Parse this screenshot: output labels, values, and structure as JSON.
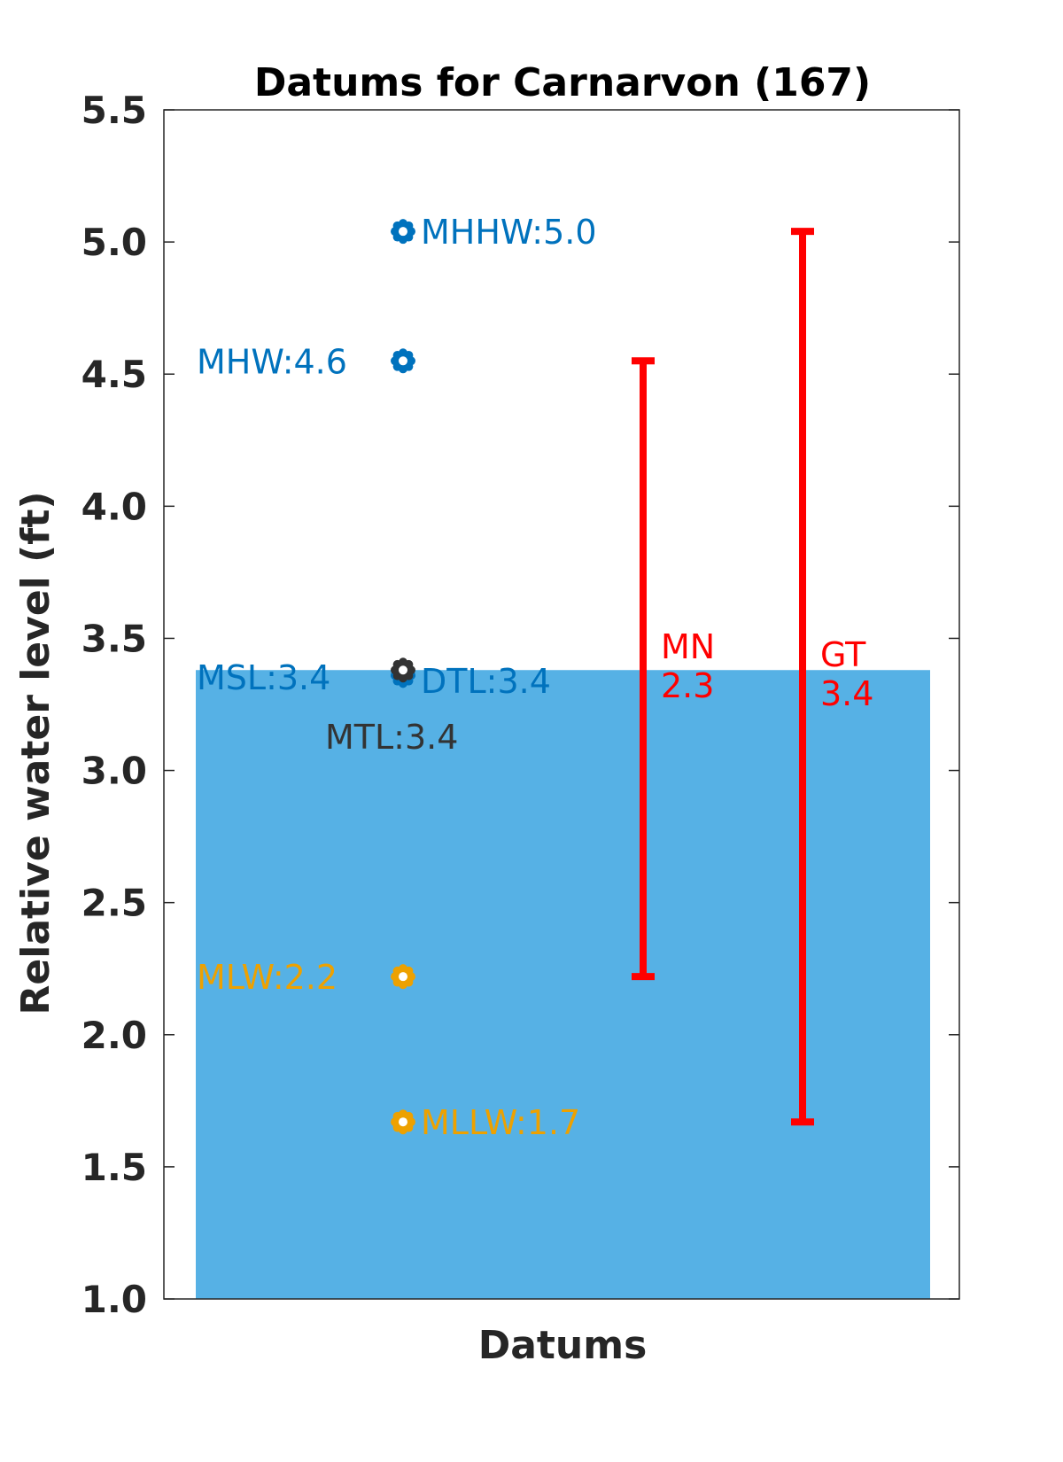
{
  "chart_data": {
    "type": "scatter",
    "title": "Datums for Carnarvon (167)",
    "xlabel": "Datums",
    "ylabel": "Relative water level (ft)",
    "ylim": [
      1.0,
      5.5
    ],
    "yticks": [
      "1.0",
      "1.5",
      "2.0",
      "2.5",
      "3.0",
      "3.5",
      "4.0",
      "4.5",
      "5.0",
      "5.5"
    ],
    "grid": false,
    "background_fill": {
      "from": 1.0,
      "to": 3.38,
      "color": "#56B1E5"
    },
    "points": [
      {
        "name": "MHHW",
        "value": 5.04,
        "label": "MHHW:5.0",
        "color": "#0072BD",
        "label_side": "right"
      },
      {
        "name": "MHW",
        "value": 4.55,
        "label": "MHW:4.6",
        "color": "#0072BD",
        "label_side": "left"
      },
      {
        "name": "MSL",
        "value": 3.36,
        "label": "MSL:3.4",
        "color": "#0072BD",
        "label_side": "left"
      },
      {
        "name": "DTL",
        "value": 3.36,
        "label": "DTL:3.4",
        "color": "#0072BD",
        "label_side": "right"
      },
      {
        "name": "MTL",
        "value": 3.38,
        "label": "MTL:3.4",
        "color": "#333333",
        "label_side": "below"
      },
      {
        "name": "MLW",
        "value": 2.22,
        "label": "MLW:2.2",
        "color": "#EDA100",
        "label_side": "left"
      },
      {
        "name": "MLLW",
        "value": 1.67,
        "label": "MLLW:1.7",
        "color": "#EDA100",
        "label_side": "right"
      }
    ],
    "ranges": [
      {
        "name": "MN",
        "low": 2.22,
        "high": 4.55,
        "value": "2.3",
        "color": "#FF0000"
      },
      {
        "name": "GT",
        "low": 1.67,
        "high": 5.04,
        "value": "3.4",
        "color": "#FF0000"
      }
    ]
  }
}
